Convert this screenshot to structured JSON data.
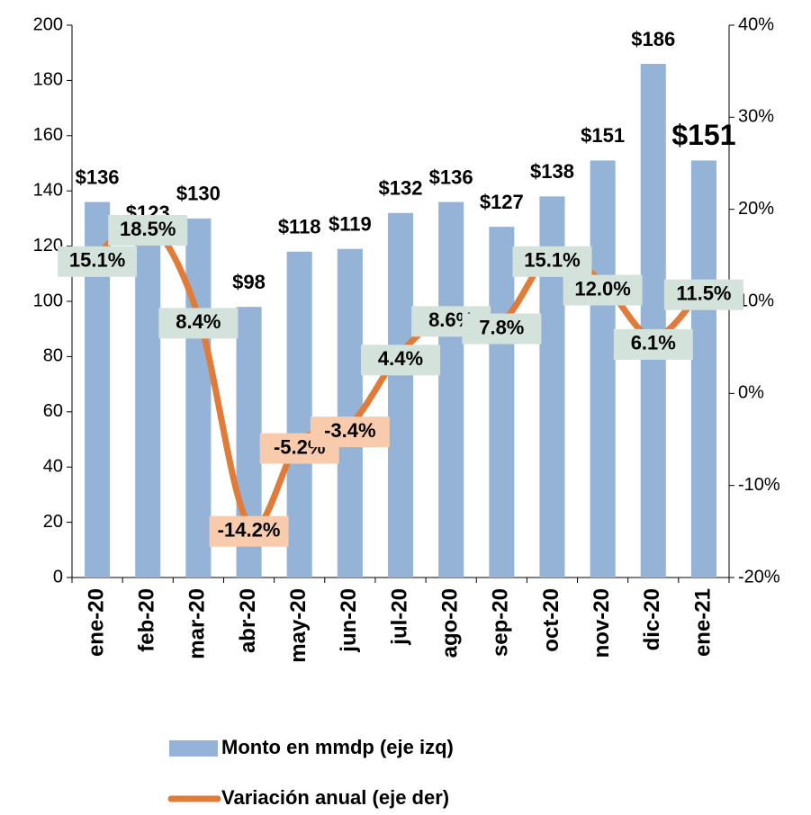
{
  "chart_data": {
    "type": "bar_line",
    "categories": [
      "ene-20",
      "feb-20",
      "mar-20",
      "abr-20",
      "may-20",
      "jun-20",
      "jul-20",
      "ago-20",
      "sep-20",
      "oct-20",
      "nov-20",
      "dic-20",
      "ene-21"
    ],
    "series": [
      {
        "name": "Monto en mmdp (eje izq)",
        "type": "bar",
        "color": "#95b3d7",
        "values": [
          136,
          123,
          130,
          98,
          118,
          119,
          132,
          136,
          127,
          138,
          151,
          186,
          151
        ],
        "value_labels": [
          "$136",
          "$123",
          "$130",
          "$98",
          "$118",
          "$119",
          "$132",
          "$136",
          "$127",
          "$138",
          "$151",
          "$186",
          "$151"
        ]
      },
      {
        "name": "Variación anual (eje der)",
        "type": "line",
        "axis": "y2",
        "color": "#e07b39",
        "values": [
          15.1,
          18.5,
          8.4,
          -14.2,
          -5.2,
          -3.4,
          4.4,
          8.6,
          7.8,
          15.1,
          12.0,
          6.1,
          11.5
        ],
        "value_labels": [
          "15.1%",
          "18.5%",
          "8.4%",
          "-14.2%",
          "-5.2%",
          "-3.4%",
          "4.4%",
          "8.6%",
          "7.8%",
          "15.1%",
          "12.0%",
          "6.1%",
          "11.5%"
        ]
      }
    ],
    "ylim": [
      0,
      200
    ],
    "yticks": [
      0,
      20,
      40,
      60,
      80,
      100,
      120,
      140,
      160,
      180,
      200
    ],
    "y2lim": [
      -20,
      40
    ],
    "y2ticks": [
      {
        "value": -20,
        "label": "-20%"
      },
      {
        "value": -10,
        "label": "-10%"
      },
      {
        "value": 0,
        "label": "0%"
      },
      {
        "value": 10,
        "label": "10%"
      },
      {
        "value": 20,
        "label": "20%"
      },
      {
        "value": 30,
        "label": "30%"
      },
      {
        "value": 40,
        "label": "40%"
      }
    ],
    "legend": "bottom",
    "grid": false
  }
}
